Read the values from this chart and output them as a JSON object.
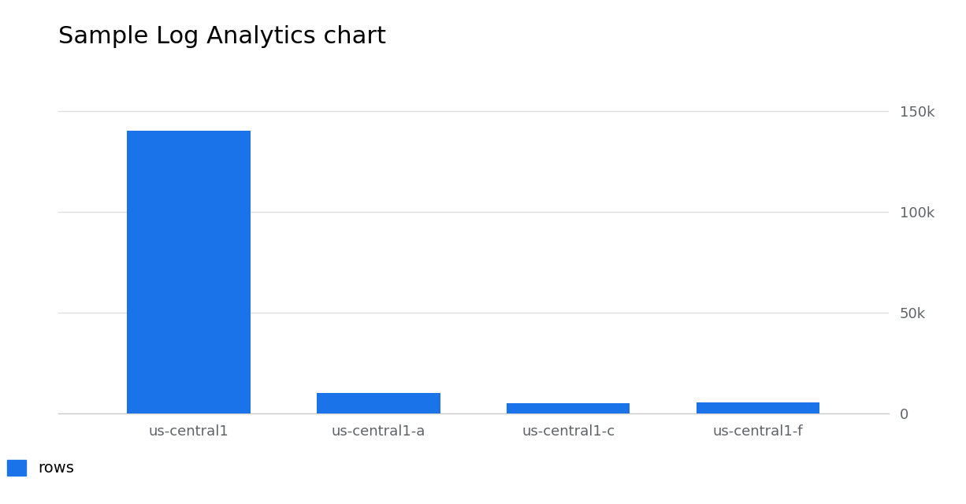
{
  "title": "Sample Log Analytics chart",
  "categories": [
    "us-central1",
    "us-central1-a",
    "us-central1-c",
    "us-central1-f"
  ],
  "values": [
    140000,
    10000,
    5000,
    5500
  ],
  "bar_color": "#1A73E8",
  "ylim": [
    0,
    160000
  ],
  "yticks": [
    0,
    50000,
    100000,
    150000
  ],
  "ytick_labels": [
    "0",
    "50k",
    "100k",
    "150k"
  ],
  "legend_label": "rows",
  "legend_color": "#1A73E8",
  "background_color": "#ffffff",
  "title_fontsize": 22,
  "tick_fontsize": 13,
  "tick_color": "#5f6368",
  "grid_color": "#e0e0e0"
}
